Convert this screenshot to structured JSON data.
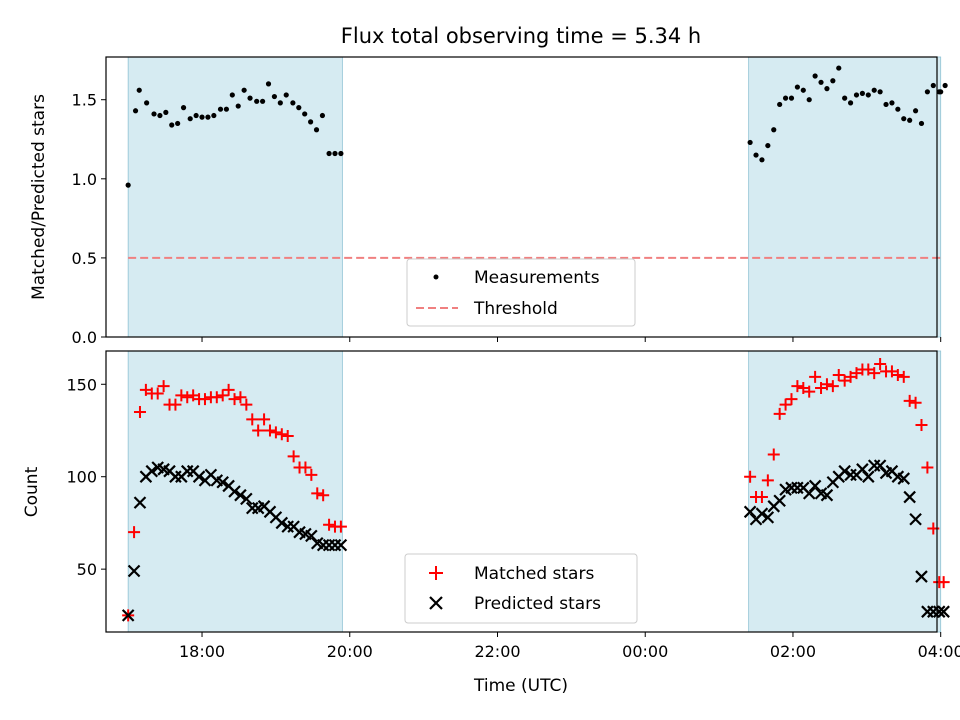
{
  "chart_data": [
    {
      "type": "scatter",
      "title": "Flux total observing time = 5.34 h",
      "ylabel": "Matched/Predicted stars",
      "xlabel": "",
      "ylim": [
        0,
        1.77
      ],
      "yticks": [
        0.0,
        0.5,
        1.0,
        1.5
      ],
      "ytick_labels": [
        "0.0",
        "0.5",
        "1.0",
        "1.5"
      ],
      "xlim": [
        16.7,
        27.95
      ],
      "xticks": [
        18,
        20,
        22,
        24,
        26,
        28
      ],
      "xtick_labels": [
        "18:00",
        "20:00",
        "22:00",
        "00:00",
        "02:00",
        "04:00"
      ],
      "shaded_intervals": [
        [
          17.0,
          19.9
        ],
        [
          25.4,
          28.0
        ]
      ],
      "threshold": 0.5,
      "legend": [
        "Measurements",
        "Threshold"
      ],
      "series": [
        {
          "name": "Measurements",
          "color": "#000000",
          "x": [
            17.0,
            17.1,
            17.15,
            17.25,
            17.35,
            17.43,
            17.51,
            17.59,
            17.67,
            17.75,
            17.84,
            17.92,
            18.0,
            18.08,
            18.16,
            18.25,
            18.33,
            18.41,
            18.49,
            18.57,
            18.65,
            18.74,
            18.82,
            18.9,
            18.98,
            19.06,
            19.14,
            19.23,
            19.31,
            19.39,
            19.47,
            19.55,
            19.63,
            19.72,
            19.8,
            19.88,
            25.42,
            25.5,
            25.58,
            25.66,
            25.74,
            25.82,
            25.9,
            25.98,
            26.06,
            26.14,
            26.22,
            26.3,
            26.38,
            26.46,
            26.54,
            26.62,
            26.7,
            26.78,
            26.86,
            26.94,
            27.02,
            27.1,
            27.18,
            27.26,
            27.34,
            27.42,
            27.5,
            27.58,
            27.66,
            27.74,
            27.82,
            27.9,
            27.98,
            28.0,
            28.06
          ],
          "y": [
            0.96,
            1.43,
            1.56,
            1.48,
            1.41,
            1.4,
            1.42,
            1.34,
            1.35,
            1.45,
            1.38,
            1.4,
            1.39,
            1.39,
            1.4,
            1.44,
            1.44,
            1.53,
            1.46,
            1.56,
            1.51,
            1.49,
            1.49,
            1.6,
            1.52,
            1.48,
            1.53,
            1.48,
            1.45,
            1.41,
            1.36,
            1.31,
            1.4,
            1.16,
            1.16,
            1.16,
            1.23,
            1.15,
            1.12,
            1.21,
            1.31,
            1.47,
            1.51,
            1.51,
            1.58,
            1.56,
            1.5,
            1.65,
            1.61,
            1.57,
            1.62,
            1.7,
            1.51,
            1.48,
            1.53,
            1.54,
            1.53,
            1.56,
            1.55,
            1.47,
            1.48,
            1.44,
            1.38,
            1.37,
            1.43,
            1.35,
            1.55,
            1.59,
            1.55,
            1.55,
            1.59
          ]
        }
      ]
    },
    {
      "type": "scatter",
      "title": "",
      "ylabel": "Count",
      "xlabel": "Time (UTC)",
      "ylim": [
        16,
        168
      ],
      "yticks": [
        50,
        100,
        150
      ],
      "ytick_labels": [
        "50",
        "100",
        "150"
      ],
      "xlim": [
        16.7,
        27.95
      ],
      "xticks": [
        18,
        20,
        22,
        24,
        26,
        28
      ],
      "xtick_labels": [
        "18:00",
        "20:00",
        "22:00",
        "00:00",
        "02:00",
        "04:00"
      ],
      "shaded_intervals": [
        [
          17.0,
          19.9
        ],
        [
          25.4,
          28.0
        ]
      ],
      "legend": [
        "Matched stars",
        "Predicted stars"
      ],
      "series": [
        {
          "name": "Matched stars",
          "color": "#ff0000",
          "marker": "+",
          "x": [
            17.0,
            17.08,
            17.16,
            17.24,
            17.32,
            17.4,
            17.48,
            17.56,
            17.64,
            17.72,
            17.8,
            17.88,
            17.96,
            18.04,
            18.12,
            18.2,
            18.28,
            18.36,
            18.44,
            18.52,
            18.6,
            18.68,
            18.76,
            18.84,
            18.92,
            19.0,
            19.08,
            19.16,
            19.24,
            19.32,
            19.4,
            19.48,
            19.56,
            19.64,
            19.72,
            19.8,
            19.88,
            25.42,
            25.5,
            25.58,
            25.66,
            25.74,
            25.82,
            25.9,
            25.98,
            26.06,
            26.14,
            26.22,
            26.3,
            26.38,
            26.46,
            26.54,
            26.62,
            26.7,
            26.78,
            26.86,
            26.94,
            27.02,
            27.1,
            27.18,
            27.26,
            27.34,
            27.42,
            27.5,
            27.58,
            27.66,
            27.74,
            27.82,
            27.9,
            27.98,
            28.04
          ],
          "y": [
            25,
            70,
            135,
            147,
            145,
            145,
            149,
            139,
            139,
            144,
            143,
            144,
            142,
            142,
            143,
            143,
            144,
            147,
            142,
            143,
            139,
            131,
            125,
            131,
            125,
            124,
            123,
            122,
            111,
            105,
            105,
            101,
            91,
            90,
            74,
            73,
            73,
            100,
            89,
            89,
            98,
            112,
            134,
            139,
            142,
            149,
            148,
            146,
            154,
            148,
            150,
            149,
            155,
            152,
            154,
            156,
            158,
            158,
            156,
            161,
            157,
            157,
            155,
            154,
            141,
            140,
            128,
            105,
            72,
            43,
            43
          ]
        },
        {
          "name": "Predicted stars",
          "color": "#000000",
          "marker": "x",
          "x": [
            17.0,
            17.08,
            17.16,
            17.24,
            17.32,
            17.4,
            17.48,
            17.56,
            17.64,
            17.72,
            17.8,
            17.88,
            17.96,
            18.04,
            18.12,
            18.2,
            18.28,
            18.36,
            18.44,
            18.52,
            18.6,
            18.68,
            18.76,
            18.84,
            18.92,
            19.0,
            19.08,
            19.16,
            19.24,
            19.32,
            19.4,
            19.48,
            19.56,
            19.64,
            19.72,
            19.8,
            19.88,
            25.42,
            25.5,
            25.58,
            25.66,
            25.74,
            25.82,
            25.9,
            25.98,
            26.06,
            26.14,
            26.22,
            26.3,
            26.38,
            26.46,
            26.54,
            26.62,
            26.7,
            26.78,
            26.86,
            26.94,
            27.02,
            27.1,
            27.18,
            27.26,
            27.34,
            27.42,
            27.5,
            27.58,
            27.66,
            27.74,
            27.82,
            27.9,
            27.98,
            28.04
          ],
          "y": [
            25,
            49,
            86,
            100,
            103,
            105,
            104,
            103,
            100,
            100,
            103,
            103,
            100,
            98,
            101,
            98,
            97,
            95,
            92,
            90,
            88,
            83,
            83,
            84,
            81,
            78,
            75,
            73,
            73,
            70,
            69,
            68,
            64,
            63,
            63,
            63,
            63,
            81,
            77,
            80,
            78,
            84,
            87,
            93,
            94,
            94,
            94,
            91,
            95,
            91,
            90,
            97,
            100,
            103,
            101,
            101,
            104,
            100,
            106,
            106,
            102,
            103,
            100,
            99,
            89,
            77,
            46,
            27,
            27,
            27,
            27
          ]
        }
      ]
    }
  ]
}
